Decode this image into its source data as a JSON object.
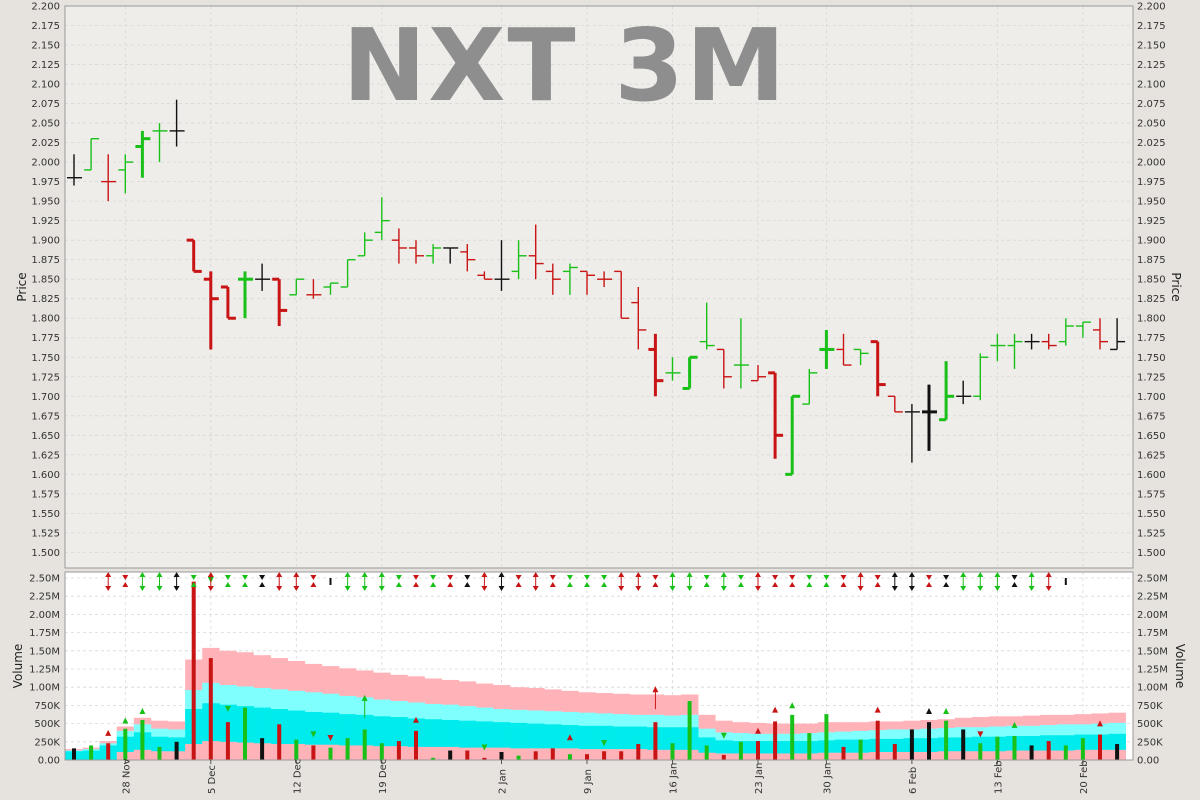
{
  "chart_data": {
    "type": "ohlc",
    "title": "NXT 3M",
    "price_panel": {
      "ylabel": "Price",
      "ylim": [
        1.48,
        2.2
      ],
      "ticks": [
        "1.500",
        "1.525",
        "1.550",
        "1.575",
        "1.600",
        "1.625",
        "1.650",
        "1.675",
        "1.700",
        "1.725",
        "1.750",
        "1.775",
        "1.800",
        "1.825",
        "1.850",
        "1.875",
        "1.900",
        "1.925",
        "1.950",
        "1.975",
        "2.000",
        "2.025",
        "2.050",
        "2.075",
        "2.100",
        "2.125",
        "2.150",
        "2.175",
        "2.200"
      ]
    },
    "volume_panel": {
      "ylabel": "Volume",
      "ylim": [
        0,
        2500000
      ],
      "ticks": [
        "0.00",
        "250K",
        "500K",
        "750K",
        "1.00M",
        "1.25M",
        "1.50M",
        "1.75M",
        "2.00M",
        "2.25M",
        "2.50M"
      ]
    },
    "date_labels": [
      {
        "label": "28 Nov",
        "index": 3
      },
      {
        "label": "5 Dec",
        "index": 8
      },
      {
        "label": "12 Dec",
        "index": 13
      },
      {
        "label": "19 Dec",
        "index": 18
      },
      {
        "label": "2 Jan",
        "index": 25
      },
      {
        "label": "9 Jan",
        "index": 30
      },
      {
        "label": "16 Jan",
        "index": 35
      },
      {
        "label": "23 Jan",
        "index": 40
      },
      {
        "label": "30 Jan",
        "index": 44
      },
      {
        "label": "6 Feb",
        "index": 49
      },
      {
        "label": "13 Feb",
        "index": 54
      },
      {
        "label": "20 Feb",
        "index": 59
      }
    ],
    "bars": [
      {
        "o": 1.98,
        "h": 2.01,
        "l": 1.97,
        "c": 1.98,
        "v": 160000,
        "col": "black"
      },
      {
        "o": 1.99,
        "h": 2.03,
        "l": 1.99,
        "c": 2.03,
        "v": 200000,
        "col": "green"
      },
      {
        "o": 1.975,
        "h": 2.01,
        "l": 1.95,
        "c": 1.975,
        "v": 230000,
        "col": "red"
      },
      {
        "o": 1.99,
        "h": 2.01,
        "l": 1.96,
        "c": 2.0,
        "v": 430000,
        "col": "green"
      },
      {
        "o": 2.02,
        "h": 2.04,
        "l": 1.98,
        "c": 2.03,
        "v": 550000,
        "col": "green"
      },
      {
        "o": 2.04,
        "h": 2.05,
        "l": 2.0,
        "c": 2.04,
        "v": 180000,
        "col": "green"
      },
      {
        "o": 2.04,
        "h": 2.08,
        "l": 2.02,
        "c": 2.04,
        "v": 250000,
        "col": "black"
      },
      {
        "o": 1.9,
        "h": 1.9,
        "l": 1.86,
        "c": 1.86,
        "v": 2450000,
        "col": "red"
      },
      {
        "o": 1.85,
        "h": 1.86,
        "l": 1.76,
        "c": 1.825,
        "v": 1400000,
        "col": "red"
      },
      {
        "o": 1.84,
        "h": 1.84,
        "l": 1.8,
        "c": 1.8,
        "v": 520000,
        "col": "red"
      },
      {
        "o": 1.85,
        "h": 1.86,
        "l": 1.8,
        "c": 1.85,
        "v": 720000,
        "col": "green"
      },
      {
        "o": 1.85,
        "h": 1.87,
        "l": 1.835,
        "c": 1.85,
        "v": 300000,
        "col": "black"
      },
      {
        "o": 1.85,
        "h": 1.85,
        "l": 1.79,
        "c": 1.81,
        "v": 490000,
        "col": "red"
      },
      {
        "o": 1.83,
        "h": 1.85,
        "l": 1.83,
        "c": 1.85,
        "v": 280000,
        "col": "green"
      },
      {
        "o": 1.83,
        "h": 1.85,
        "l": 1.825,
        "c": 1.83,
        "v": 200000,
        "col": "red"
      },
      {
        "o": 1.84,
        "h": 1.845,
        "l": 1.83,
        "c": 1.845,
        "v": 170000,
        "col": "green"
      },
      {
        "o": 1.84,
        "h": 1.875,
        "l": 1.84,
        "c": 1.875,
        "v": 300000,
        "col": "green"
      },
      {
        "o": 1.88,
        "h": 1.91,
        "l": 1.88,
        "c": 1.9,
        "v": 420000,
        "col": "green"
      },
      {
        "o": 1.91,
        "h": 1.955,
        "l": 1.9,
        "c": 1.925,
        "v": 230000,
        "col": "green"
      },
      {
        "o": 1.9,
        "h": 1.915,
        "l": 1.87,
        "c": 1.89,
        "v": 260000,
        "col": "red"
      },
      {
        "o": 1.89,
        "h": 1.9,
        "l": 1.87,
        "c": 1.88,
        "v": 400000,
        "col": "red"
      },
      {
        "o": 1.88,
        "h": 1.895,
        "l": 1.87,
        "c": 1.89,
        "v": 30000,
        "col": "green"
      },
      {
        "o": 1.89,
        "h": 1.89,
        "l": 1.87,
        "c": 1.89,
        "v": 130000,
        "col": "black"
      },
      {
        "o": 1.885,
        "h": 1.895,
        "l": 1.86,
        "c": 1.875,
        "v": 130000,
        "col": "red"
      },
      {
        "o": 1.855,
        "h": 1.86,
        "l": 1.85,
        "c": 1.85,
        "v": 30000,
        "col": "red"
      },
      {
        "o": 1.85,
        "h": 1.9,
        "l": 1.835,
        "c": 1.85,
        "v": 110000,
        "col": "black"
      },
      {
        "o": 1.86,
        "h": 1.9,
        "l": 1.85,
        "c": 1.88,
        "v": 60000,
        "col": "green"
      },
      {
        "o": 1.88,
        "h": 1.92,
        "l": 1.85,
        "c": 1.87,
        "v": 120000,
        "col": "red"
      },
      {
        "o": 1.86,
        "h": 1.87,
        "l": 1.83,
        "c": 1.85,
        "v": 160000,
        "col": "red"
      },
      {
        "o": 1.86,
        "h": 1.87,
        "l": 1.83,
        "c": 1.865,
        "v": 80000,
        "col": "green"
      },
      {
        "o": 1.86,
        "h": 1.86,
        "l": 1.83,
        "c": 1.855,
        "v": 80000,
        "col": "red"
      },
      {
        "o": 1.85,
        "h": 1.86,
        "l": 1.84,
        "c": 1.85,
        "v": 120000,
        "col": "red"
      },
      {
        "o": 1.86,
        "h": 1.86,
        "l": 1.8,
        "c": 1.8,
        "v": 120000,
        "col": "red"
      },
      {
        "o": 1.82,
        "h": 1.84,
        "l": 1.76,
        "c": 1.785,
        "v": 220000,
        "col": "red"
      },
      {
        "o": 1.76,
        "h": 1.78,
        "l": 1.7,
        "c": 1.72,
        "v": 520000,
        "col": "red"
      },
      {
        "o": 1.73,
        "h": 1.75,
        "l": 1.72,
        "c": 1.73,
        "v": 230000,
        "col": "green"
      },
      {
        "o": 1.71,
        "h": 1.75,
        "l": 1.71,
        "c": 1.75,
        "v": 810000,
        "col": "green"
      },
      {
        "o": 1.77,
        "h": 1.82,
        "l": 1.76,
        "c": 1.765,
        "v": 200000,
        "col": "green"
      },
      {
        "o": 1.76,
        "h": 1.76,
        "l": 1.71,
        "c": 1.725,
        "v": 70000,
        "col": "red"
      },
      {
        "o": 1.74,
        "h": 1.8,
        "l": 1.71,
        "c": 1.74,
        "v": 250000,
        "col": "green"
      },
      {
        "o": 1.72,
        "h": 1.74,
        "l": 1.72,
        "c": 1.725,
        "v": 260000,
        "col": "red"
      },
      {
        "o": 1.73,
        "h": 1.73,
        "l": 1.62,
        "c": 1.65,
        "v": 530000,
        "col": "red"
      },
      {
        "o": 1.6,
        "h": 1.7,
        "l": 1.6,
        "c": 1.7,
        "v": 620000,
        "col": "green"
      },
      {
        "o": 1.69,
        "h": 1.735,
        "l": 1.69,
        "c": 1.73,
        "v": 370000,
        "col": "green"
      },
      {
        "o": 1.76,
        "h": 1.785,
        "l": 1.735,
        "c": 1.76,
        "v": 630000,
        "col": "green"
      },
      {
        "o": 1.76,
        "h": 1.78,
        "l": 1.74,
        "c": 1.74,
        "v": 180000,
        "col": "red"
      },
      {
        "o": 1.76,
        "h": 1.76,
        "l": 1.74,
        "c": 1.755,
        "v": 280000,
        "col": "green"
      },
      {
        "o": 1.77,
        "h": 1.77,
        "l": 1.7,
        "c": 1.715,
        "v": 540000,
        "col": "red"
      },
      {
        "o": 1.7,
        "h": 1.7,
        "l": 1.68,
        "c": 1.68,
        "v": 220000,
        "col": "red"
      },
      {
        "o": 1.68,
        "h": 1.69,
        "l": 1.615,
        "c": 1.68,
        "v": 420000,
        "col": "black"
      },
      {
        "o": 1.68,
        "h": 1.715,
        "l": 1.63,
        "c": 1.68,
        "v": 520000,
        "col": "black"
      },
      {
        "o": 1.67,
        "h": 1.745,
        "l": 1.67,
        "c": 1.7,
        "v": 540000,
        "col": "green"
      },
      {
        "o": 1.7,
        "h": 1.72,
        "l": 1.69,
        "c": 1.7,
        "v": 420000,
        "col": "black"
      },
      {
        "o": 1.7,
        "h": 1.755,
        "l": 1.695,
        "c": 1.75,
        "v": 230000,
        "col": "green"
      },
      {
        "o": 1.765,
        "h": 1.78,
        "l": 1.745,
        "c": 1.765,
        "v": 320000,
        "col": "green"
      },
      {
        "o": 1.765,
        "h": 1.78,
        "l": 1.735,
        "c": 1.77,
        "v": 330000,
        "col": "green"
      },
      {
        "o": 1.77,
        "h": 1.78,
        "l": 1.76,
        "c": 1.77,
        "v": 200000,
        "col": "black"
      },
      {
        "o": 1.77,
        "h": 1.78,
        "l": 1.76,
        "c": 1.765,
        "v": 260000,
        "col": "red"
      },
      {
        "o": 1.77,
        "h": 1.8,
        "l": 1.765,
        "c": 1.79,
        "v": 200000,
        "col": "green"
      },
      {
        "o": 1.79,
        "h": 1.795,
        "l": 1.775,
        "c": 1.795,
        "v": 300000,
        "col": "green"
      },
      {
        "o": 1.785,
        "h": 1.8,
        "l": 1.76,
        "c": 1.77,
        "v": 350000,
        "col": "red"
      },
      {
        "o": 1.76,
        "h": 1.8,
        "l": 1.76,
        "c": 1.77,
        "v": 220000,
        "col": "black"
      }
    ],
    "band_outer": [
      150000,
      170000,
      260000,
      460000,
      580000,
      540000,
      530000,
      1380000,
      1540000,
      1500000,
      1480000,
      1440000,
      1400000,
      1360000,
      1320000,
      1290000,
      1260000,
      1230000,
      1200000,
      1170000,
      1150000,
      1120000,
      1100000,
      1080000,
      1050000,
      1030000,
      1000000,
      990000,
      970000,
      950000,
      930000,
      920000,
      910000,
      900000,
      900000,
      890000,
      900000,
      620000,
      540000,
      520000,
      510000,
      500000,
      500000,
      500000,
      520000,
      520000,
      520000,
      530000,
      530000,
      540000,
      550000,
      560000,
      580000,
      590000,
      600000,
      600000,
      610000,
      620000,
      620000,
      630000,
      640000,
      650000
    ],
    "band_mid": [
      130000,
      150000,
      230000,
      400000,
      490000,
      430000,
      420000,
      960000,
      1060000,
      1030000,
      1010000,
      990000,
      970000,
      950000,
      930000,
      910000,
      880000,
      860000,
      830000,
      810000,
      790000,
      770000,
      760000,
      740000,
      720000,
      700000,
      690000,
      680000,
      670000,
      660000,
      650000,
      640000,
      630000,
      620000,
      620000,
      610000,
      620000,
      430000,
      380000,
      370000,
      360000,
      360000,
      360000,
      370000,
      380000,
      390000,
      400000,
      410000,
      420000,
      420000,
      430000,
      440000,
      450000,
      450000,
      460000,
      470000,
      470000,
      480000,
      490000,
      490000,
      500000,
      510000
    ],
    "band_inner": [
      120000,
      130000,
      200000,
      320000,
      380000,
      320000,
      310000,
      700000,
      780000,
      760000,
      740000,
      720000,
      700000,
      680000,
      660000,
      650000,
      630000,
      620000,
      600000,
      590000,
      570000,
      560000,
      550000,
      540000,
      530000,
      520000,
      510000,
      500000,
      490000,
      480000,
      470000,
      470000,
      460000,
      460000,
      450000,
      450000,
      450000,
      310000,
      270000,
      260000,
      260000,
      260000,
      260000,
      260000,
      270000,
      280000,
      280000,
      290000,
      290000,
      300000,
      300000,
      310000,
      310000,
      320000,
      320000,
      330000,
      330000,
      340000,
      340000,
      350000,
      350000,
      360000
    ],
    "band_low": [
      0,
      0,
      0,
      110000,
      140000,
      120000,
      120000,
      220000,
      260000,
      250000,
      240000,
      230000,
      220000,
      220000,
      210000,
      210000,
      200000,
      200000,
      190000,
      190000,
      180000,
      180000,
      180000,
      170000,
      170000,
      170000,
      160000,
      160000,
      160000,
      160000,
      150000,
      150000,
      150000,
      150000,
      140000,
      140000,
      140000,
      100000,
      90000,
      90000,
      90000,
      90000,
      90000,
      90000,
      100000,
      100000,
      100000,
      110000,
      110000,
      110000,
      110000,
      120000,
      120000,
      120000,
      120000,
      130000,
      130000,
      130000,
      130000,
      140000,
      140000,
      140000
    ],
    "volume_markers": [
      {
        "i": 2,
        "v": 400000,
        "col": "red",
        "dir": "up"
      },
      {
        "i": 3,
        "v": 570000,
        "col": "green",
        "dir": "up"
      },
      {
        "i": 4,
        "v": 700000,
        "col": "green",
        "dir": "up"
      },
      {
        "i": 8,
        "v": 2500000,
        "col": "green",
        "dir": "down"
      },
      {
        "i": 9,
        "v": 730000,
        "col": "green",
        "dir": "down"
      },
      {
        "i": 14,
        "v": 380000,
        "col": "green",
        "dir": "down"
      },
      {
        "i": 15,
        "v": 330000,
        "col": "red",
        "dir": "down"
      },
      {
        "i": 17,
        "v": 880000,
        "col": "green",
        "dir": "up",
        "stem": true
      },
      {
        "i": 20,
        "v": 580000,
        "col": "red",
        "dir": "up"
      },
      {
        "i": 24,
        "v": 200000,
        "col": "green",
        "dir": "down"
      },
      {
        "i": 29,
        "v": 340000,
        "col": "red",
        "dir": "up"
      },
      {
        "i": 31,
        "v": 260000,
        "col": "green",
        "dir": "down"
      },
      {
        "i": 34,
        "v": 1000000,
        "col": "red",
        "dir": "up",
        "stem": true
      },
      {
        "i": 38,
        "v": 360000,
        "col": "green",
        "dir": "down"
      },
      {
        "i": 40,
        "v": 430000,
        "col": "red",
        "dir": "up"
      },
      {
        "i": 41,
        "v": 720000,
        "col": "red",
        "dir": "up"
      },
      {
        "i": 42,
        "v": 780000,
        "col": "green",
        "dir": "up"
      },
      {
        "i": 47,
        "v": 720000,
        "col": "red",
        "dir": "up"
      },
      {
        "i": 50,
        "v": 700000,
        "col": "black",
        "dir": "up"
      },
      {
        "i": 51,
        "v": 700000,
        "col": "green",
        "dir": "up"
      },
      {
        "i": 53,
        "v": 380000,
        "col": "red",
        "dir": "down"
      },
      {
        "i": 55,
        "v": 510000,
        "col": "green",
        "dir": "up"
      },
      {
        "i": 60,
        "v": 530000,
        "col": "red",
        "dir": "up"
      }
    ],
    "signals": [
      "",
      "",
      "ud-red",
      "x-red",
      "ud-green",
      "ud-green",
      "ud-black",
      "x-green",
      "ud-red",
      "x-green",
      "x-green",
      "x-black",
      "ud-red",
      "ud-red",
      "x-red",
      "bar-black",
      "ud-green",
      "ud-green",
      "ud-green",
      "x-green",
      "x-red",
      "x-green",
      "x-red",
      "x-black",
      "ud-red",
      "ud-black",
      "x-red",
      "ud-red",
      "x-red",
      "x-green",
      "x-green",
      "x-green",
      "ud-red",
      "ud-red",
      "x-red",
      "ud-green",
      "ud-green",
      "x-green",
      "ud-green",
      "x-green",
      "ud-red",
      "x-red",
      "x-red",
      "x-green",
      "x-green",
      "x-red",
      "ud-red",
      "x-red",
      "ud-black",
      "ud-black",
      "x-red",
      "x-black",
      "ud-green",
      "ud-green",
      "ud-green",
      "x-black",
      "ud-green",
      "ud-red",
      "bar-black"
    ],
    "colors": {
      "up": "#18c018",
      "down": "#c81414",
      "flat": "#111111",
      "plot_bg": "#efedea",
      "vol_bg": "#ffffff",
      "band_outer": "#ffb3b8",
      "band_mid": "#80ffff",
      "band_inner": "#00ecec",
      "band_low": "#ffb3b8",
      "grid": "#d8d8d8",
      "title": "#8e8e8e"
    }
  }
}
